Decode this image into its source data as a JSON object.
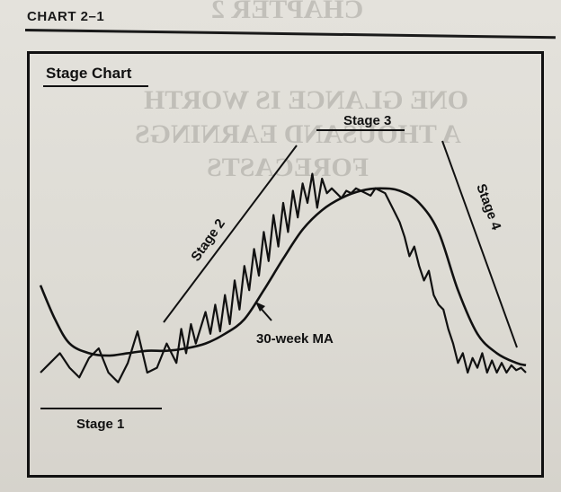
{
  "page": {
    "chart_number": "CHART 2–1"
  },
  "chart_data": {
    "type": "line",
    "title": "Stage Chart",
    "xlabel": "",
    "ylabel": "",
    "grid": false,
    "axes_visible": false,
    "xlim": [
      0,
      100
    ],
    "ylim": [
      0,
      100
    ],
    "series": [
      {
        "name": "",
        "style": "zigzag",
        "x": [
          0,
          2,
          4,
          6,
          8,
          10,
          12,
          14,
          16,
          18,
          20,
          22,
          24,
          26,
          28,
          29,
          30,
          31,
          32,
          34,
          35,
          36,
          37,
          38,
          39,
          40,
          41,
          42,
          43,
          44,
          45,
          46,
          47,
          48,
          49,
          50,
          51,
          52,
          53,
          54,
          55,
          56,
          57,
          58,
          59,
          60,
          61,
          62,
          63,
          64,
          65,
          66,
          67,
          68,
          69,
          70,
          71,
          72,
          73,
          74,
          75,
          76,
          77,
          78,
          79,
          80,
          81,
          82,
          83,
          84,
          85,
          86,
          87,
          88,
          89,
          90,
          91,
          92,
          93,
          94,
          95,
          96,
          97,
          98,
          99,
          100
        ],
        "y": [
          10,
          14,
          18,
          12,
          8,
          16,
          20,
          10,
          6,
          14,
          27,
          10,
          12,
          22,
          14,
          28,
          18,
          30,
          22,
          35,
          26,
          38,
          27,
          42,
          30,
          48,
          36,
          54,
          44,
          61,
          50,
          68,
          56,
          75,
          62,
          80,
          68,
          85,
          74,
          88,
          80,
          92,
          78,
          90,
          84,
          86,
          84,
          82,
          85,
          84,
          86,
          85,
          84,
          83,
          86,
          85,
          84,
          80,
          76,
          72,
          66,
          58,
          62,
          54,
          48,
          52,
          42,
          38,
          36,
          28,
          22,
          14,
          18,
          10,
          16,
          12,
          18,
          10,
          15,
          10,
          14,
          10,
          13,
          11,
          12,
          10
        ]
      },
      {
        "name": "30-week MA",
        "style": "smooth",
        "x": [
          0,
          3,
          6,
          10,
          14,
          18,
          22,
          26,
          30,
          34,
          38,
          42,
          46,
          50,
          54,
          58,
          62,
          66,
          70,
          74,
          78,
          82,
          86,
          90,
          94,
          98,
          100
        ],
        "y": [
          46,
          32,
          22,
          18,
          17,
          18,
          19,
          19,
          20,
          22,
          26,
          32,
          44,
          57,
          69,
          77,
          82,
          85,
          86,
          85,
          80,
          68,
          44,
          26,
          18,
          14,
          13
        ]
      }
    ],
    "annotations": [
      {
        "text": "Stage 1",
        "position": "bottom-left"
      },
      {
        "text": "Stage 2",
        "position": "left-center"
      },
      {
        "text": "Stage 3",
        "position": "top-center"
      },
      {
        "text": "Stage 4",
        "position": "right"
      },
      {
        "text": "30-week MA",
        "position": "center-left"
      }
    ]
  }
}
